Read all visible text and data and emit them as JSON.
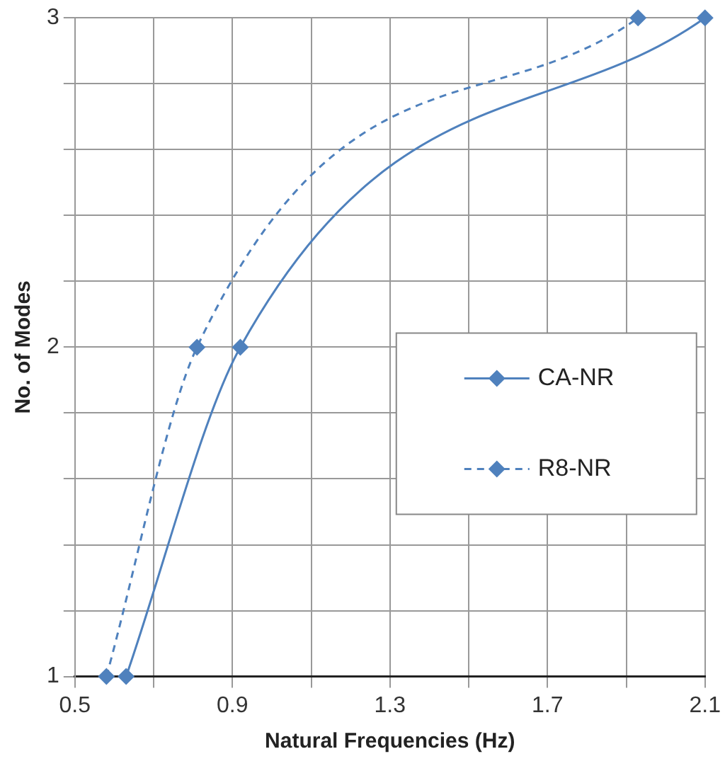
{
  "chart_data": {
    "type": "line",
    "xlabel": "Natural Frequencies (Hz)",
    "ylabel": "No. of Modes",
    "xlim": [
      0.5,
      2.1
    ],
    "xticks": [
      0.5,
      {
        "value": 0.7,
        "label": null
      },
      0.9,
      {
        "value": 1.1,
        "label": null
      },
      1.3,
      {
        "value": 1.5,
        "label": null
      },
      1.7,
      {
        "value": 1.9,
        "label": null
      },
      2.1
    ],
    "ylim": [
      1,
      3
    ],
    "yticks": [
      1,
      {
        "value": 1.2,
        "label": null
      },
      {
        "value": 1.4,
        "label": null
      },
      {
        "value": 1.6,
        "label": null
      },
      {
        "value": 1.8,
        "label": null
      },
      2,
      {
        "value": 2.2,
        "label": null
      },
      {
        "value": 2.4,
        "label": null
      },
      {
        "value": 2.6,
        "label": null
      },
      {
        "value": 2.8,
        "label": null
      },
      3
    ],
    "grid": true,
    "legend": "right",
    "marker": "diamond",
    "series": [
      {
        "name": "CA-NR",
        "color": "#4f81bd",
        "x": [
          0.63,
          0.92,
          2.1
        ],
        "values": [
          1,
          2,
          3
        ],
        "line_style": "solid"
      },
      {
        "name": "R8-NR",
        "color": "#4f81bd",
        "x": [
          0.58,
          0.81,
          1.93
        ],
        "values": [
          1,
          2,
          3
        ],
        "line_style": "dashed"
      }
    ]
  }
}
